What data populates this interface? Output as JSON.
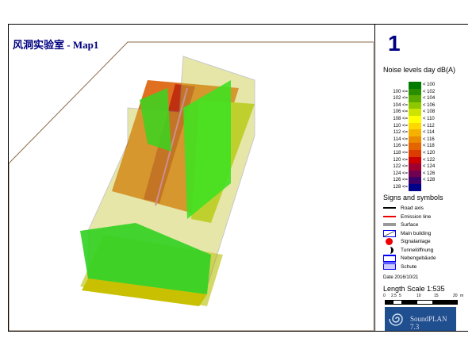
{
  "title": "风洞实验室 - Map1",
  "panel": {
    "number": "1",
    "legend_title": "Noise levels day dB(A)",
    "legend": [
      {
        "lo": "",
        "hi": "< 100",
        "color": "#007a00"
      },
      {
        "lo": "100 <=",
        "hi": "< 102",
        "color": "#2a8f00"
      },
      {
        "lo": "102 <=",
        "hi": "< 104",
        "color": "#5aab00"
      },
      {
        "lo": "104 <=",
        "hi": "< 106",
        "color": "#90c800"
      },
      {
        "lo": "106 <=",
        "hi": "< 108",
        "color": "#cce400"
      },
      {
        "lo": "108 <=",
        "hi": "< 110",
        "color": "#ffff00"
      },
      {
        "lo": "110 <=",
        "hi": "< 112",
        "color": "#ffd800"
      },
      {
        "lo": "112 <=",
        "hi": "< 114",
        "color": "#f5b000"
      },
      {
        "lo": "114 <=",
        "hi": "< 116",
        "color": "#ec8a00"
      },
      {
        "lo": "116 <=",
        "hi": "< 118",
        "color": "#e46400"
      },
      {
        "lo": "118 <=",
        "hi": "< 120",
        "color": "#dc3c00"
      },
      {
        "lo": "120 <=",
        "hi": "< 122",
        "color": "#cc0000"
      },
      {
        "lo": "122 <=",
        "hi": "< 124",
        "color": "#a00030"
      },
      {
        "lo": "124 <=",
        "hi": "< 126",
        "color": "#700050"
      },
      {
        "lo": "126 <=",
        "hi": "< 128",
        "color": "#3c0068"
      },
      {
        "lo": "128 <=",
        "hi": "",
        "color": "#000088"
      }
    ],
    "signs_title": "Signs and symbols",
    "signs": [
      {
        "label": "Road axis",
        "icon": "road-axis"
      },
      {
        "label": "Emission line",
        "icon": "emission-line"
      },
      {
        "label": "Surface",
        "icon": "surface"
      },
      {
        "label": "Main building",
        "icon": "main-building"
      },
      {
        "label": "Signalanlage",
        "icon": "signal-dot"
      },
      {
        "label": "Tunnelöffnung",
        "icon": "tunnel-opening"
      },
      {
        "label": "Nebengebäude",
        "icon": "secondary-building"
      },
      {
        "label": "Schute",
        "icon": "barrier"
      }
    ],
    "date": "Date 2016/10/21",
    "length_scale": "Length Scale 1:535",
    "scale_ticks": [
      "0",
      "2.5",
      "5",
      "10",
      "15",
      "20",
      "m"
    ],
    "logo": "SoundPLAN 7.3"
  }
}
